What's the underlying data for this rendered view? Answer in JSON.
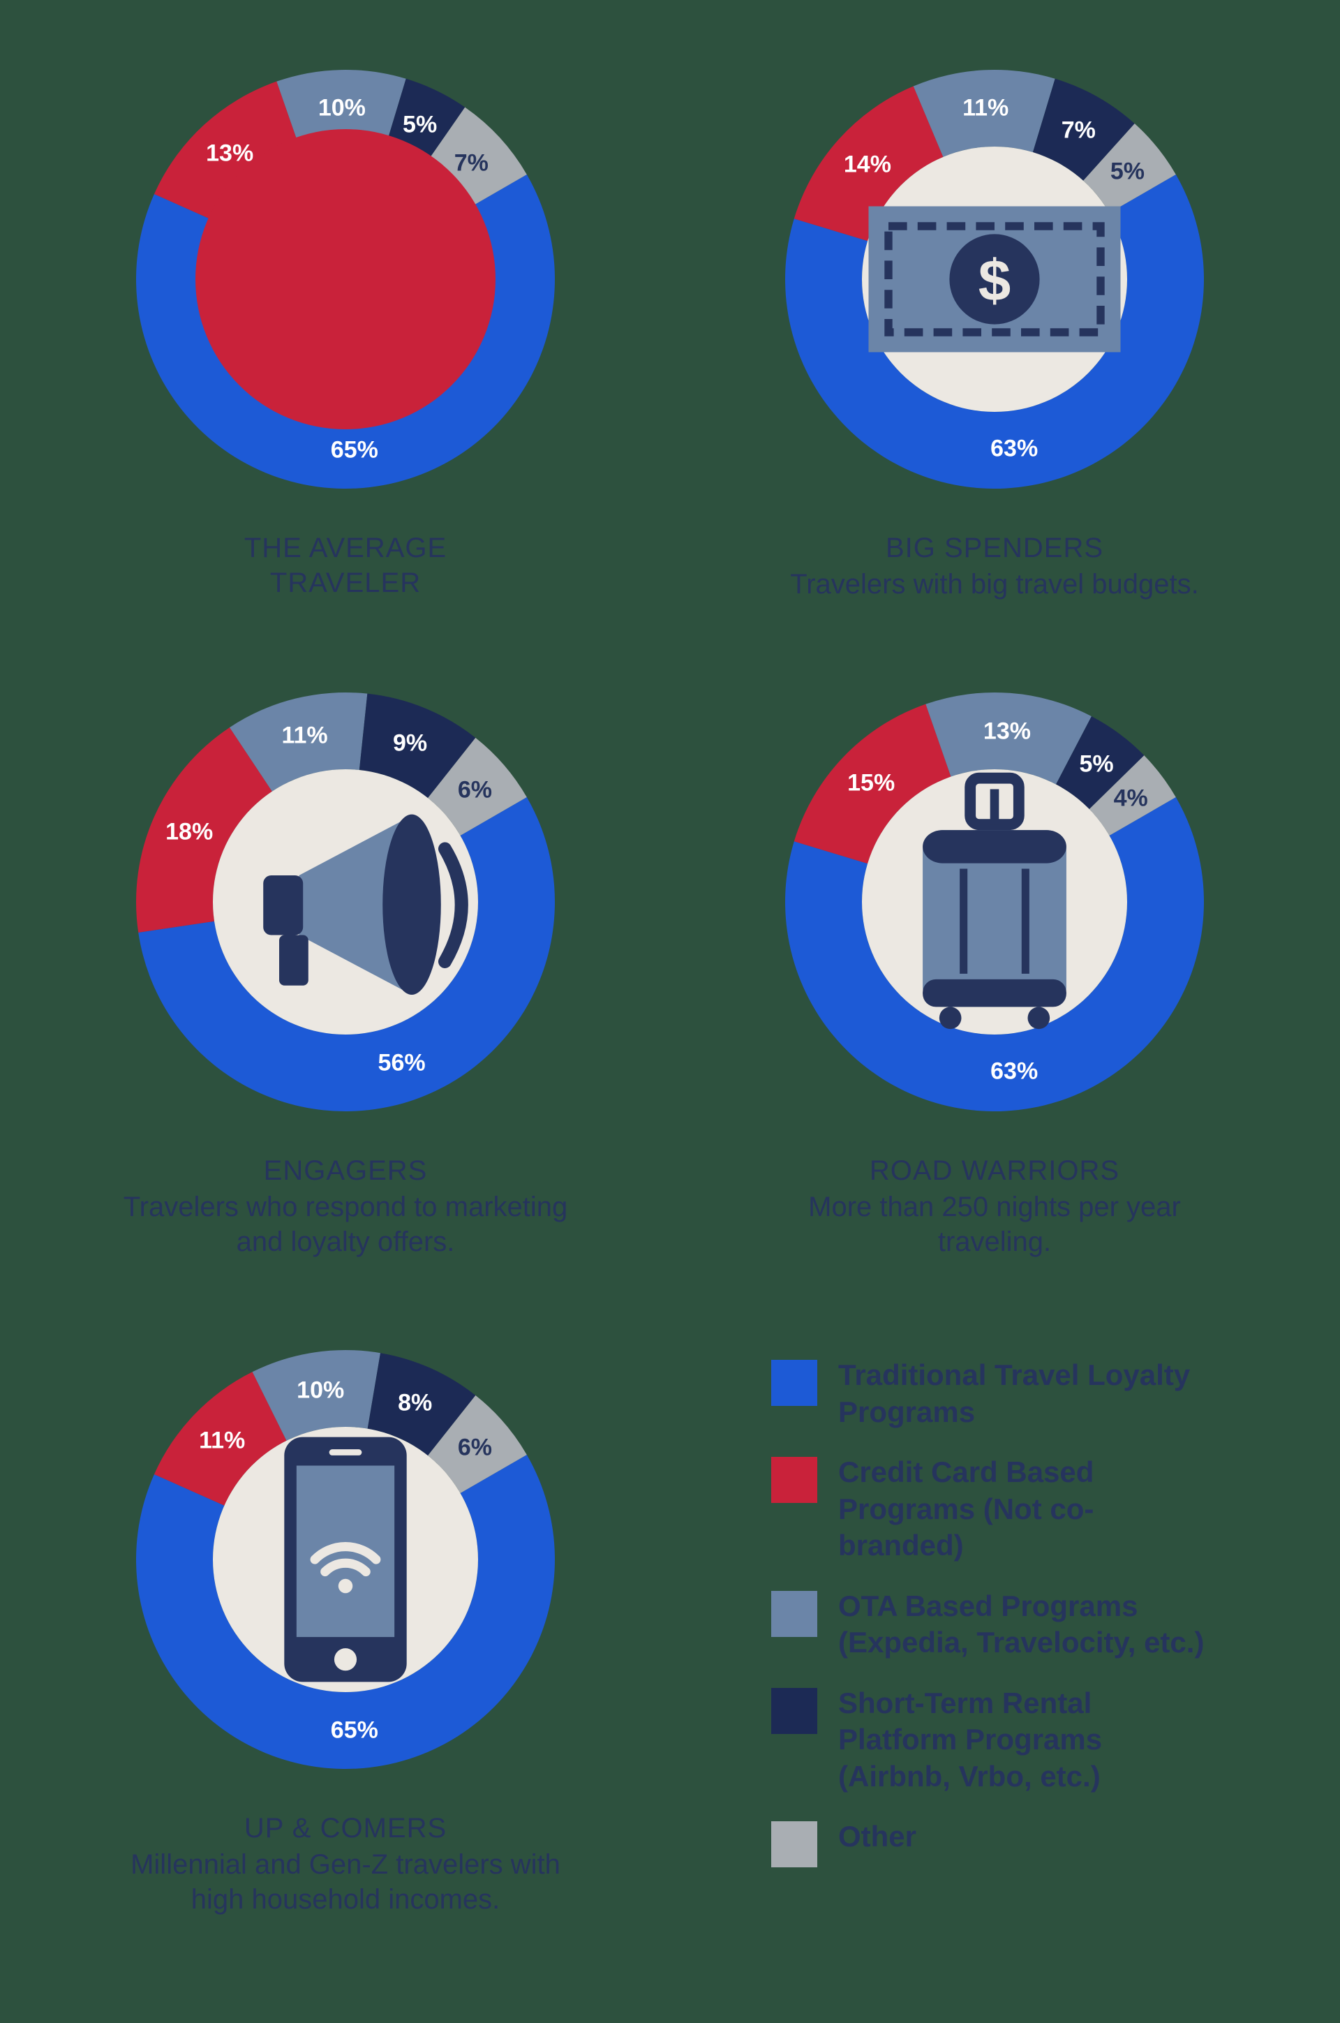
{
  "background_color": "#2d513e",
  "text_color": "#26345d",
  "donut": {
    "outer_radius": 300,
    "inner_radius": 190,
    "label_fontsize": 34,
    "start_angle_deg": 60
  },
  "center_icon": {
    "bg_color": "#ece8e2",
    "diameter": 380,
    "icon_color_dark": "#26345d",
    "icon_color_mid": "#6b85a8"
  },
  "colors": {
    "traditional": "#1d5ad6",
    "credit": "#c9223a",
    "ota": "#6b85a8",
    "rental": "#1c2a55",
    "other": "#a9aeb3",
    "label_on_dark": "#ffffff",
    "label_on_light": "#26345d"
  },
  "charts": [
    {
      "id": "average",
      "title": "THE AVERAGE",
      "title2": "TRAVELER",
      "subtitle": "",
      "center": "red",
      "slices": [
        {
          "key": "traditional",
          "value": 65,
          "label": "65%"
        },
        {
          "key": "credit",
          "value": 13,
          "label": "13%"
        },
        {
          "key": "ota",
          "value": 10,
          "label": "10%"
        },
        {
          "key": "rental",
          "value": 5,
          "label": "5%"
        },
        {
          "key": "other",
          "value": 7,
          "label": "7%"
        }
      ]
    },
    {
      "id": "spenders",
      "title": "BIG SPENDERS",
      "subtitle": "Travelers with big travel budgets.",
      "center": "money",
      "slices": [
        {
          "key": "traditional",
          "value": 63,
          "label": "63%"
        },
        {
          "key": "credit",
          "value": 14,
          "label": "14%"
        },
        {
          "key": "ota",
          "value": 11,
          "label": "11%"
        },
        {
          "key": "rental",
          "value": 7,
          "label": "7%"
        },
        {
          "key": "other",
          "value": 5,
          "label": "5%"
        }
      ]
    },
    {
      "id": "engagers",
      "title": "ENGAGERS",
      "subtitle": "Travelers who respond to marketing and loyalty offers.",
      "center": "megaphone",
      "slices": [
        {
          "key": "traditional",
          "value": 56,
          "label": "56%"
        },
        {
          "key": "credit",
          "value": 18,
          "label": "18%"
        },
        {
          "key": "ota",
          "value": 11,
          "label": "11%"
        },
        {
          "key": "rental",
          "value": 9,
          "label": "9%"
        },
        {
          "key": "other",
          "value": 6,
          "label": "6%"
        }
      ]
    },
    {
      "id": "warriors",
      "title": "ROAD WARRIORS",
      "subtitle": "More than 250 nights per year traveling.",
      "center": "suitcase",
      "slices": [
        {
          "key": "traditional",
          "value": 63,
          "label": "63%"
        },
        {
          "key": "credit",
          "value": 15,
          "label": "15%"
        },
        {
          "key": "ota",
          "value": 13,
          "label": "13%"
        },
        {
          "key": "rental",
          "value": 5,
          "label": "5%"
        },
        {
          "key": "other",
          "value": 4,
          "label": "4%"
        }
      ]
    },
    {
      "id": "upcomers",
      "title": "UP & COMERS",
      "subtitle": "Millennial and Gen-Z travelers with high household incomes.",
      "center": "phone",
      "slices": [
        {
          "key": "traditional",
          "value": 65,
          "label": "65%"
        },
        {
          "key": "credit",
          "value": 11,
          "label": "11%"
        },
        {
          "key": "ota",
          "value": 10,
          "label": "10%"
        },
        {
          "key": "rental",
          "value": 8,
          "label": "8%"
        },
        {
          "key": "other",
          "value": 6,
          "label": "6%"
        }
      ]
    }
  ],
  "legend": [
    {
      "key": "traditional",
      "label": "Traditional Travel Loyalty Programs"
    },
    {
      "key": "credit",
      "label": "Credit Card Based Programs (Not co-branded)"
    },
    {
      "key": "ota",
      "label": "OTA Based Programs (Expedia, Travelocity, etc.)"
    },
    {
      "key": "rental",
      "label": "Short-Term Rental Platform Programs (Airbnb, Vrbo, etc.)"
    },
    {
      "key": "other",
      "label": "Other"
    }
  ]
}
